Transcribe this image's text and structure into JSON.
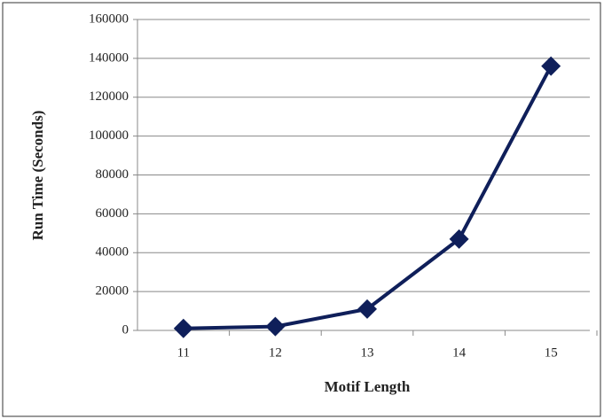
{
  "chart_data": {
    "type": "line",
    "x_label": "Motif Length",
    "y_label": "Run Time (Seconds)",
    "categories": [
      "11",
      "12",
      "13",
      "14",
      "15"
    ],
    "series": [
      {
        "name": "Run Time",
        "color": "#0f1f5a",
        "values": [
          1000,
          2000,
          11000,
          47000,
          136000
        ]
      }
    ],
    "ylim": [
      0,
      160000
    ],
    "yticks": [
      0,
      20000,
      40000,
      60000,
      80000,
      100000,
      120000,
      140000,
      160000
    ],
    "grid": true
  }
}
